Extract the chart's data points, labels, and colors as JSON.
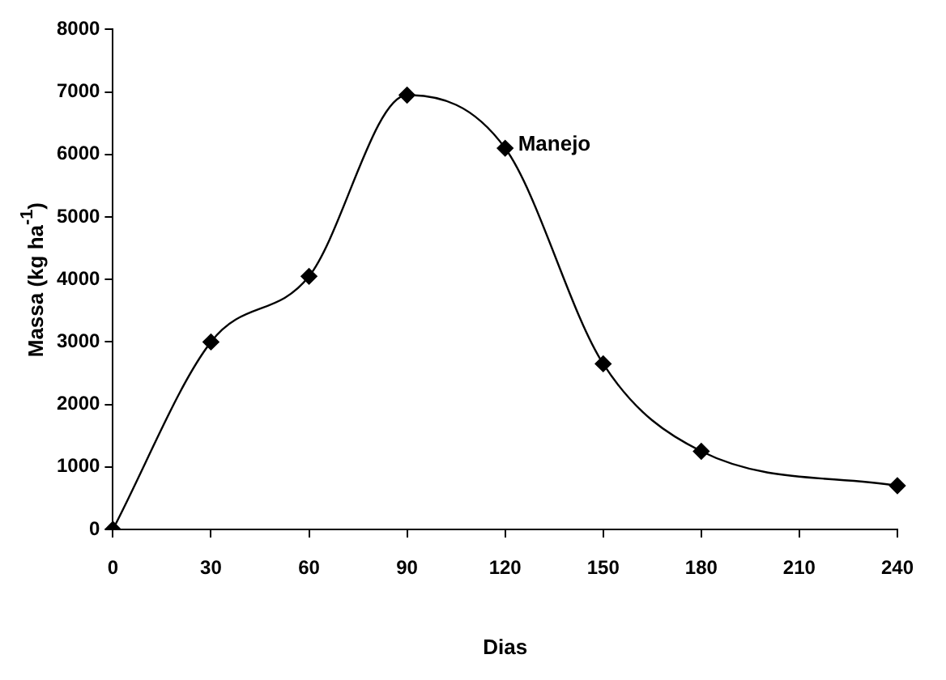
{
  "chart_data": {
    "type": "line",
    "xlabel": "Dias",
    "ylabel": "Massa (kg ha$^{-1}$)",
    "categories": [
      "0",
      "30",
      "60",
      "90",
      "120",
      "150",
      "180",
      "210",
      "240"
    ],
    "series": [
      {
        "color": "#000000",
        "values": [
          0,
          3000,
          4050,
          6950,
          6100,
          2650,
          1250,
          null,
          700
        ]
      }
    ],
    "ylim": [
      0,
      8000
    ],
    "yticks": [
      0,
      1000,
      2000,
      3000,
      4000,
      5000,
      6000,
      7000,
      8000
    ],
    "grid": false,
    "legend": false,
    "marker": "diamond",
    "line_style": "solid",
    "annotations": [
      {
        "text": "Manejo",
        "x": "120",
        "y": 6100
      }
    ]
  }
}
